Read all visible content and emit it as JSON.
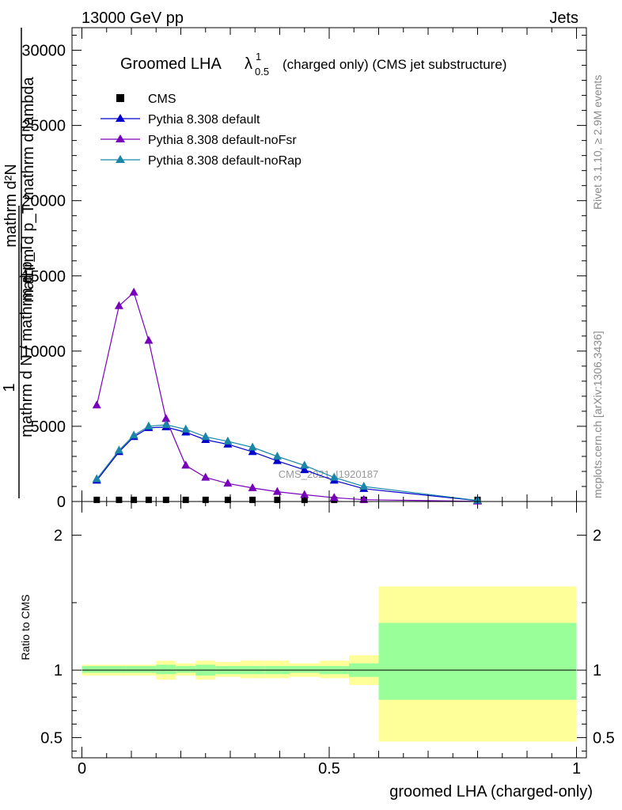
{
  "header": {
    "left": "13000 GeV pp",
    "right": "Jets"
  },
  "side_labels": {
    "rivet": "Rivet 3.1.10, ≥ 2.9M events",
    "mcplots": "mcplots.cern.ch [arXiv:1306.3436]"
  },
  "watermark": "CMS_2021_I1920187",
  "chart_data": [
    {
      "type": "line",
      "title_main": "Groomed LHA",
      "title_lambda": "λ",
      "title_sup": "1",
      "title_sub": "0.5",
      "title_rest": "(charged only) (CMS jet substructure)",
      "ylabel_parts": [
        "mathrm d²N",
        "1",
        "mathrm d N / mathrm d p_T",
        "mathrm d p_T mathrm d lambda"
      ],
      "xlim": [
        -0.02,
        1.02
      ],
      "ylim": [
        0,
        31500
      ],
      "yticks": [
        0,
        5000,
        10000,
        15000,
        20000,
        25000,
        30000
      ],
      "ytick_labels": [
        "0",
        "5000",
        "10000",
        "15000",
        "20000",
        "25000",
        "30000"
      ],
      "grid": false,
      "legend_position": "top-left",
      "series": [
        {
          "name": "CMS",
          "color": "#000000",
          "marker": "square",
          "x": [
            0.03,
            0.075,
            0.105,
            0.135,
            0.17,
            0.21,
            0.25,
            0.295,
            0.345,
            0.395,
            0.45,
            0.51,
            0.57,
            0.8
          ],
          "values": [
            3,
            3,
            3,
            3,
            3,
            3,
            3,
            3,
            3,
            3,
            3,
            3,
            3,
            3
          ]
        },
        {
          "name": "Pythia 8.308 default",
          "color": "#0000cc",
          "marker": "triangle",
          "x": [
            0.03,
            0.075,
            0.105,
            0.135,
            0.17,
            0.21,
            0.25,
            0.295,
            0.345,
            0.395,
            0.45,
            0.51,
            0.57,
            0.8
          ],
          "values": [
            1400,
            3300,
            4300,
            4900,
            4950,
            4600,
            4100,
            3800,
            3300,
            2700,
            2100,
            1400,
            850,
            60
          ]
        },
        {
          "name": "Pythia 8.308 default-noFsr",
          "color": "#7700bb",
          "marker": "triangle",
          "x": [
            0.03,
            0.075,
            0.105,
            0.135,
            0.17,
            0.21,
            0.25,
            0.295,
            0.345,
            0.395,
            0.45,
            0.51,
            0.57,
            0.8
          ],
          "values": [
            6400,
            13000,
            13900,
            10700,
            5500,
            2400,
            1600,
            1200,
            900,
            650,
            450,
            250,
            120,
            10
          ]
        },
        {
          "name": "Pythia 8.308 default-noRap",
          "color": "#1b86a8",
          "marker": "triangle",
          "x": [
            0.03,
            0.075,
            0.105,
            0.135,
            0.17,
            0.21,
            0.25,
            0.295,
            0.345,
            0.395,
            0.45,
            0.51,
            0.57,
            0.8
          ],
          "values": [
            1500,
            3400,
            4400,
            5000,
            5100,
            4800,
            4300,
            4000,
            3600,
            3000,
            2400,
            1600,
            1000,
            70
          ]
        }
      ]
    },
    {
      "type": "area",
      "ylabel": "Ratio to CMS",
      "xlabel": "groomed LHA (charged-only)",
      "xlim": [
        -0.02,
        1.02
      ],
      "ylim": [
        0.35,
        2.25
      ],
      "yticks": [
        0.5,
        1,
        2
      ],
      "ytick_labels": [
        "0.5",
        "1",
        "2"
      ],
      "xticks": [
        0,
        0.5,
        1
      ],
      "xtick_labels": [
        "0",
        "0.5",
        "1"
      ],
      "reference_line": 1,
      "bins": [
        {
          "lo": 0.0,
          "hi": 0.06,
          "stat_lo": 0.98,
          "stat_hi": 1.03,
          "tot_lo": 0.96,
          "tot_hi": 1.04
        },
        {
          "lo": 0.06,
          "hi": 0.09,
          "stat_lo": 0.98,
          "stat_hi": 1.03,
          "tot_lo": 0.96,
          "tot_hi": 1.04
        },
        {
          "lo": 0.09,
          "hi": 0.12,
          "stat_lo": 0.98,
          "stat_hi": 1.03,
          "tot_lo": 0.96,
          "tot_hi": 1.04
        },
        {
          "lo": 0.12,
          "hi": 0.15,
          "stat_lo": 0.98,
          "stat_hi": 1.03,
          "tot_lo": 0.96,
          "tot_hi": 1.04
        },
        {
          "lo": 0.15,
          "hi": 0.19,
          "stat_lo": 0.97,
          "stat_hi": 1.04,
          "tot_lo": 0.93,
          "tot_hi": 1.07
        },
        {
          "lo": 0.19,
          "hi": 0.23,
          "stat_lo": 0.98,
          "stat_hi": 1.03,
          "tot_lo": 0.96,
          "tot_hi": 1.05
        },
        {
          "lo": 0.23,
          "hi": 0.27,
          "stat_lo": 0.96,
          "stat_hi": 1.04,
          "tot_lo": 0.93,
          "tot_hi": 1.07
        },
        {
          "lo": 0.27,
          "hi": 0.32,
          "stat_lo": 0.97,
          "stat_hi": 1.03,
          "tot_lo": 0.95,
          "tot_hi": 1.06
        },
        {
          "lo": 0.32,
          "hi": 0.37,
          "stat_lo": 0.97,
          "stat_hi": 1.03,
          "tot_lo": 0.94,
          "tot_hi": 1.07
        },
        {
          "lo": 0.37,
          "hi": 0.42,
          "stat_lo": 0.97,
          "stat_hi": 1.03,
          "tot_lo": 0.94,
          "tot_hi": 1.07
        },
        {
          "lo": 0.42,
          "hi": 0.48,
          "stat_lo": 0.98,
          "stat_hi": 1.03,
          "tot_lo": 0.95,
          "tot_hi": 1.05
        },
        {
          "lo": 0.48,
          "hi": 0.54,
          "stat_lo": 0.97,
          "stat_hi": 1.03,
          "tot_lo": 0.94,
          "tot_hi": 1.07
        },
        {
          "lo": 0.54,
          "hi": 0.6,
          "stat_lo": 0.95,
          "stat_hi": 1.05,
          "tot_lo": 0.89,
          "tot_hi": 1.11
        },
        {
          "lo": 0.6,
          "hi": 1.0,
          "stat_lo": 0.78,
          "stat_hi": 1.35,
          "tot_lo": 0.47,
          "tot_hi": 1.62
        }
      ]
    }
  ]
}
